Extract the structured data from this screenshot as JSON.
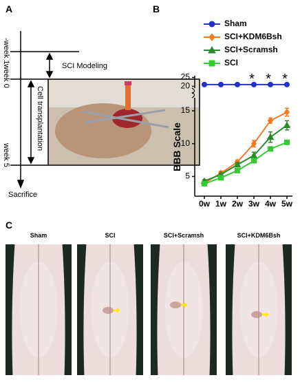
{
  "panels": {
    "a": "A",
    "b": "B",
    "c": "C"
  },
  "timeline": {
    "weeks": [
      "-week 1",
      "week 0",
      "week 5"
    ],
    "steps": [
      "SCI Modeling",
      "Cell transplantation",
      "Sacrifice"
    ]
  },
  "chart_data": {
    "type": "line",
    "y_label": "BBB Scale",
    "categories": [
      "0w",
      "1w",
      "2w",
      "3w",
      "4w",
      "5w"
    ],
    "ylim": [
      2,
      17
    ],
    "yticks": [
      5,
      10,
      15
    ],
    "y_break": {
      "ylim": [
        19,
        26
      ],
      "yticks": [
        20,
        25
      ]
    },
    "series": [
      {
        "name": "Sham",
        "color": "#2233cc",
        "marker": "circle",
        "values": [
          21,
          21,
          21,
          21,
          21,
          21
        ],
        "errors": [
          0,
          0,
          0,
          0,
          0,
          0
        ]
      },
      {
        "name": "SCI+KDM6Bsh",
        "color": "#f47a20",
        "marker": "diamond",
        "values": [
          4,
          5.5,
          7.2,
          10,
          13.5,
          14.8
        ],
        "errors": [
          0.3,
          0.3,
          0.3,
          0.5,
          0.4,
          0.6
        ]
      },
      {
        "name": "SCI+Scramsh",
        "color": "#2a8a2a",
        "marker": "triangle",
        "values": [
          4.3,
          5.3,
          6.8,
          8.2,
          11,
          12.8
        ],
        "errors": [
          0.2,
          0.2,
          0.3,
          0.5,
          0.8,
          0.7
        ]
      },
      {
        "name": "SCI",
        "color": "#33cc33",
        "marker": "square",
        "values": [
          3.9,
          4.8,
          5.9,
          7.4,
          9.2,
          10.2
        ],
        "errors": [
          0.2,
          0.2,
          0.2,
          0.3,
          0.3,
          0.3
        ]
      }
    ],
    "annotations": [
      {
        "text": "*",
        "category": "3w"
      },
      {
        "text": "*",
        "category": "4w"
      },
      {
        "text": "*",
        "category": "5w"
      }
    ]
  },
  "images": {
    "labels": [
      "Sham",
      "SCI",
      "SCI+Scramsh",
      "SCI+KDM6Bsh"
    ]
  }
}
